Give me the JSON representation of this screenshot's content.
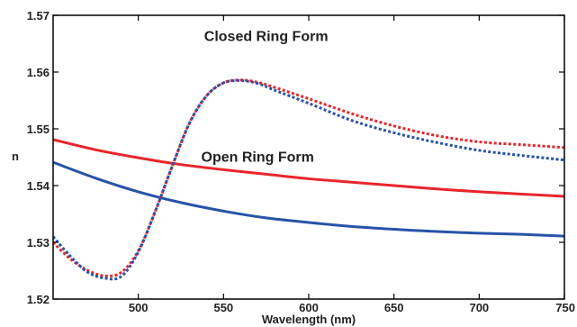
{
  "chart_data": {
    "type": "line",
    "title": "",
    "xlabel": "Wavelength (nm)",
    "ylabel": "n",
    "xlim": [
      450,
      750
    ],
    "ylim": [
      1.52,
      1.57
    ],
    "grid": false,
    "legend": "none",
    "x_ticks": [
      500,
      550,
      600,
      650,
      700,
      750
    ],
    "x_tick_labels": [
      "500",
      "550",
      "600",
      "650",
      "700",
      "750"
    ],
    "y_ticks": [
      1.52,
      1.53,
      1.54,
      1.55,
      1.56,
      1.57
    ],
    "y_tick_labels": [
      "1.52",
      "1.53",
      "1.54",
      "1.55",
      "1.56",
      "1.57"
    ],
    "annotations": [
      {
        "text": "Closed Ring Form",
        "x": 575,
        "y": 1.5655
      },
      {
        "text": "Open Ring Form",
        "x": 570,
        "y": 1.5442
      }
    ],
    "series": [
      {
        "color": "#e8262b",
        "style": "solid",
        "x": [
          450,
          475,
          500,
          525,
          550,
          575,
          600,
          625,
          650,
          675,
          700,
          725,
          750
        ],
        "y": [
          1.5481,
          1.5463,
          1.5449,
          1.5437,
          1.5428,
          1.542,
          1.5412,
          1.5406,
          1.54,
          1.5394,
          1.5389,
          1.5385,
          1.5381
        ]
      },
      {
        "color": "#2753a8",
        "style": "solid",
        "x": [
          450,
          475,
          500,
          525,
          550,
          575,
          600,
          625,
          650,
          675,
          700,
          725,
          750
        ],
        "y": [
          1.5441,
          1.5413,
          1.5389,
          1.537,
          1.5355,
          1.5343,
          1.5335,
          1.5328,
          1.5323,
          1.5319,
          1.5316,
          1.5314,
          1.5311
        ]
      },
      {
        "color": "#e8262b",
        "style": "dotted",
        "x": [
          450,
          460,
          470,
          480,
          490,
          500,
          510,
          520,
          530,
          540,
          550,
          560,
          570,
          580,
          600,
          625,
          650,
          675,
          700,
          725,
          750
        ],
        "y": [
          1.53,
          1.5271,
          1.5251,
          1.5241,
          1.5247,
          1.5285,
          1.5355,
          1.5435,
          1.551,
          1.5558,
          1.5581,
          1.5586,
          1.5582,
          1.5573,
          1.5553,
          1.5527,
          1.5505,
          1.5488,
          1.5477,
          1.5472,
          1.5467
        ]
      },
      {
        "color": "#2753a8",
        "style": "dotted",
        "x": [
          450,
          460,
          470,
          480,
          490,
          500,
          510,
          520,
          530,
          540,
          550,
          560,
          570,
          580,
          600,
          625,
          650,
          675,
          700,
          725,
          750
        ],
        "y": [
          1.531,
          1.5276,
          1.5248,
          1.5237,
          1.524,
          1.5283,
          1.5355,
          1.5435,
          1.551,
          1.5558,
          1.5581,
          1.5585,
          1.558,
          1.5568,
          1.5545,
          1.5515,
          1.5493,
          1.5476,
          1.5462,
          1.5453,
          1.5445
        ]
      }
    ]
  }
}
